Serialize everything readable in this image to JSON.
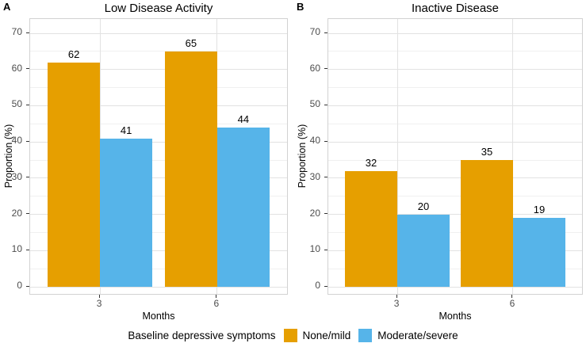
{
  "figure": {
    "panels": [
      {
        "tag": "A",
        "title": "Low Disease Activity",
        "ylabel": "Proportion (%)",
        "xlabel": "Months"
      },
      {
        "tag": "B",
        "title": "Inactive Disease",
        "ylabel": "Proportion (%)",
        "xlabel": "Months"
      }
    ],
    "legend": {
      "title": "Baseline depressive symptoms",
      "items": [
        {
          "label": "None/mild",
          "color": "#E69F00"
        },
        {
          "label": "Moderate/severe",
          "color": "#56B4E9"
        }
      ]
    }
  },
  "chart_data": [
    {
      "type": "bar",
      "panel": "A",
      "title": "Low Disease Activity",
      "categories": [
        "3",
        "6"
      ],
      "series": [
        {
          "name": "None/mild",
          "color": "#E69F00",
          "values": [
            62,
            65
          ]
        },
        {
          "name": "Moderate/severe",
          "color": "#56B4E9",
          "values": [
            41,
            44
          ]
        }
      ],
      "xlabel": "Months",
      "ylabel": "Proportion (%)",
      "ylim": [
        0,
        70
      ],
      "yticks": [
        0,
        10,
        20,
        30,
        40,
        50,
        60,
        70
      ],
      "grid": true,
      "bar_labels": true,
      "legend_position": "bottom"
    },
    {
      "type": "bar",
      "panel": "B",
      "title": "Inactive Disease",
      "categories": [
        "3",
        "6"
      ],
      "series": [
        {
          "name": "None/mild",
          "color": "#E69F00",
          "values": [
            32,
            35
          ]
        },
        {
          "name": "Moderate/severe",
          "color": "#56B4E9",
          "values": [
            20,
            19
          ]
        }
      ],
      "xlabel": "Months",
      "ylabel": "Proportion (%)",
      "ylim": [
        0,
        70
      ],
      "yticks": [
        0,
        10,
        20,
        30,
        40,
        50,
        60,
        70
      ],
      "grid": true,
      "bar_labels": true,
      "legend_position": "bottom"
    }
  ],
  "colors": {
    "grid_major": "#e2e2e2",
    "grid_minor": "#f0f0f0",
    "panel_border": "#d2d2d2",
    "tick_text": "#4d4d4d"
  }
}
